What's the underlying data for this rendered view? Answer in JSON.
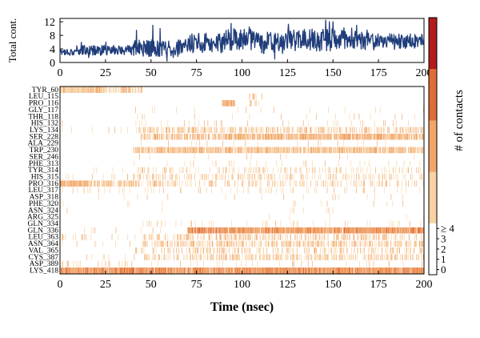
{
  "chart_data": [
    {
      "type": "line",
      "ylabel": "Total cont.",
      "xlim": [
        0,
        200
      ],
      "ylim": [
        0,
        13
      ],
      "xticks": [
        0,
        25,
        50,
        75,
        100,
        125,
        150,
        175,
        200
      ],
      "yticks": [
        0,
        4,
        8,
        12
      ],
      "line_color": "#1f3d7a",
      "segments": [
        {
          "x0": 0,
          "x1": 10,
          "mean": 3.2,
          "amp": 1.2
        },
        {
          "x0": 10,
          "x1": 40,
          "mean": 3.6,
          "amp": 1.5
        },
        {
          "x0": 40,
          "x1": 70,
          "mean": 4.2,
          "amp": 2.5
        },
        {
          "x0": 70,
          "x1": 90,
          "mean": 5.8,
          "amp": 3.0
        },
        {
          "x0": 90,
          "x1": 110,
          "mean": 6.8,
          "amp": 3.2
        },
        {
          "x0": 110,
          "x1": 125,
          "mean": 5.8,
          "amp": 3.2
        },
        {
          "x0": 125,
          "x1": 150,
          "mean": 6.6,
          "amp": 3.4
        },
        {
          "x0": 150,
          "x1": 175,
          "mean": 6.6,
          "amp": 3.0
        },
        {
          "x0": 175,
          "x1": 200,
          "mean": 6.3,
          "amp": 2.2
        }
      ],
      "spikes": [
        {
          "x": 42,
          "y": 9.5
        },
        {
          "x": 51,
          "y": 11
        },
        {
          "x": 55,
          "y": 10
        },
        {
          "x": 94,
          "y": 11.5
        },
        {
          "x": 104,
          "y": 10.5
        },
        {
          "x": 118,
          "y": 1
        },
        {
          "x": 146,
          "y": 12.5
        },
        {
          "x": 150,
          "y": 12
        },
        {
          "x": 163,
          "y": 11
        }
      ]
    },
    {
      "type": "heatmap",
      "xlabel": "Time (nsec)",
      "colorbar_label": "# of contacts",
      "colorbar_ticks": [
        "0",
        "1",
        "2",
        "3",
        "≥ 4"
      ],
      "xlim": [
        0,
        200
      ],
      "xticks": [
        0,
        25,
        50,
        75,
        100,
        125,
        150,
        175,
        200
      ],
      "colors": [
        "#ffffff",
        "#f8d2a2",
        "#f2a568",
        "#e06c38",
        "#b11c1c"
      ],
      "residues": [
        {
          "name": "TYR_60",
          "blocks": [
            [
              0,
              25,
              0.8,
              1.4
            ],
            [
              25,
              45,
              0.4,
              1.2
            ]
          ]
        },
        {
          "name": "LEU_115",
          "blocks": [
            [
              104,
              112,
              0.25,
              1.2
            ]
          ]
        },
        {
          "name": "PRO_116",
          "blocks": [
            [
              89,
              96,
              0.95,
              1.8
            ],
            [
              102,
              110,
              0.2,
              1.2
            ]
          ]
        },
        {
          "name": "GLY_117",
          "blocks": [
            [
              40,
              200,
              0.03,
              1.2
            ]
          ]
        },
        {
          "name": "THR_118",
          "blocks": [
            [
              40,
              200,
              0.02,
              1.2
            ]
          ]
        },
        {
          "name": "HIS_132",
          "blocks": [
            [
              0,
              10,
              0.05,
              1.2
            ],
            [
              40,
              200,
              0.06,
              1.2
            ]
          ]
        },
        {
          "name": "LYS_134",
          "blocks": [
            [
              0,
              40,
              0.02,
              1.2
            ],
            [
              42,
              90,
              0.4,
              1.4
            ],
            [
              90,
              200,
              0.35,
              1.5
            ]
          ]
        },
        {
          "name": "SER_228",
          "blocks": [
            [
              44,
              90,
              0.45,
              1.6
            ],
            [
              90,
              200,
              0.75,
              1.8
            ]
          ]
        },
        {
          "name": "ALA_229",
          "blocks": [
            [
              40,
              200,
              0.03,
              1.2
            ]
          ]
        },
        {
          "name": "TRP_230",
          "blocks": [
            [
              40,
              200,
              0.72,
              1.5
            ]
          ]
        },
        {
          "name": "SER_246",
          "blocks": [
            [
              40,
              200,
              0.02,
              1.2
            ]
          ]
        },
        {
          "name": "PHE_313",
          "blocks": [
            [
              40,
              200,
              0.05,
              1.2
            ]
          ]
        },
        {
          "name": "TYR_314",
          "blocks": [
            [
              0,
              40,
              0.04,
              1.2
            ],
            [
              40,
              200,
              0.15,
              1.2
            ]
          ]
        },
        {
          "name": "HIS_315",
          "blocks": [
            [
              0,
              40,
              0.04,
              1.2
            ],
            [
              40,
              200,
              0.22,
              1.2
            ]
          ]
        },
        {
          "name": "PRO_316",
          "blocks": [
            [
              0,
              15,
              0.9,
              1.8
            ],
            [
              15,
              40,
              0.55,
              1.4
            ],
            [
              40,
              200,
              0.2,
              1.4
            ]
          ]
        },
        {
          "name": "LEU_317",
          "blocks": [
            [
              0,
              40,
              0.1,
              1.2
            ],
            [
              40,
              200,
              0.08,
              1.2
            ]
          ]
        },
        {
          "name": "ASP_318",
          "blocks": [
            [
              0,
              200,
              0.015,
              1.2
            ]
          ]
        },
        {
          "name": "PHE_320",
          "blocks": [
            [
              0,
              200,
              0.01,
              1.2
            ]
          ]
        },
        {
          "name": "ASN_324",
          "blocks": [
            [
              0,
              200,
              0.01,
              1.2
            ]
          ]
        },
        {
          "name": "ARG_325",
          "blocks": [
            [
              0,
              200,
              0.01,
              1.2
            ]
          ]
        },
        {
          "name": "GLN_334",
          "blocks": [
            [
              40,
              200,
              0.05,
              1.2
            ]
          ]
        },
        {
          "name": "GLN_336",
          "blocks": [
            [
              0,
              70,
              0.03,
              1.3
            ],
            [
              70,
              200,
              0.9,
              2.2
            ]
          ]
        },
        {
          "name": "LEU_363",
          "blocks": [
            [
              0,
              45,
              0.06,
              1.2
            ],
            [
              45,
              200,
              0.3,
              1.4
            ]
          ]
        },
        {
          "name": "ASN_364",
          "blocks": [
            [
              0,
              45,
              0.04,
              1.2
            ],
            [
              45,
              200,
              0.4,
              1.4
            ]
          ]
        },
        {
          "name": "VAL_365",
          "blocks": [
            [
              40,
              200,
              0.25,
              1.3
            ]
          ]
        },
        {
          "name": "CYS_387",
          "blocks": [
            [
              0,
              45,
              0.04,
              1.2
            ],
            [
              45,
              200,
              0.35,
              1.3
            ]
          ]
        },
        {
          "name": "ASP_389",
          "blocks": [
            [
              0,
              40,
              0.1,
              1.2
            ],
            [
              40,
              200,
              0.05,
              1.2
            ]
          ]
        },
        {
          "name": "LYS_418",
          "blocks": [
            [
              0,
              200,
              0.92,
              2.2
            ]
          ]
        }
      ]
    }
  ]
}
